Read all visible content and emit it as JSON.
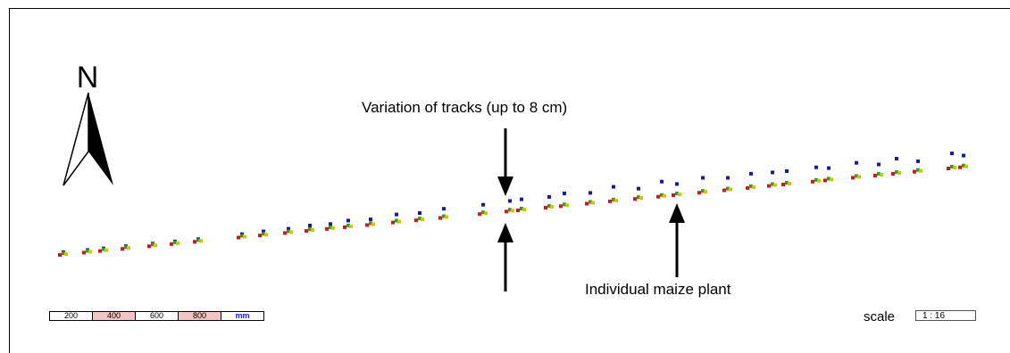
{
  "north": {
    "letter": "N"
  },
  "annotations": {
    "track_variation": "Variation of tracks (up to 8 cm)",
    "maize_plant": "Individual maize plant"
  },
  "scale_bar": {
    "segments": [
      "200",
      "400",
      "600",
      "800",
      "mm"
    ]
  },
  "scale": {
    "label": "scale",
    "value": "1 : 16"
  },
  "colors": {
    "track_blue": "#1a1aa0",
    "track_red": "#cc1a1a",
    "track_green": "#2aa02a",
    "track_yellow": "#d8c000",
    "scale_pink": "#f3c4c4",
    "unit_blue": "#1a1aff"
  },
  "icons": [
    "north-arrow-icon",
    "down-arrow-icon",
    "up-arrow-icon"
  ]
}
